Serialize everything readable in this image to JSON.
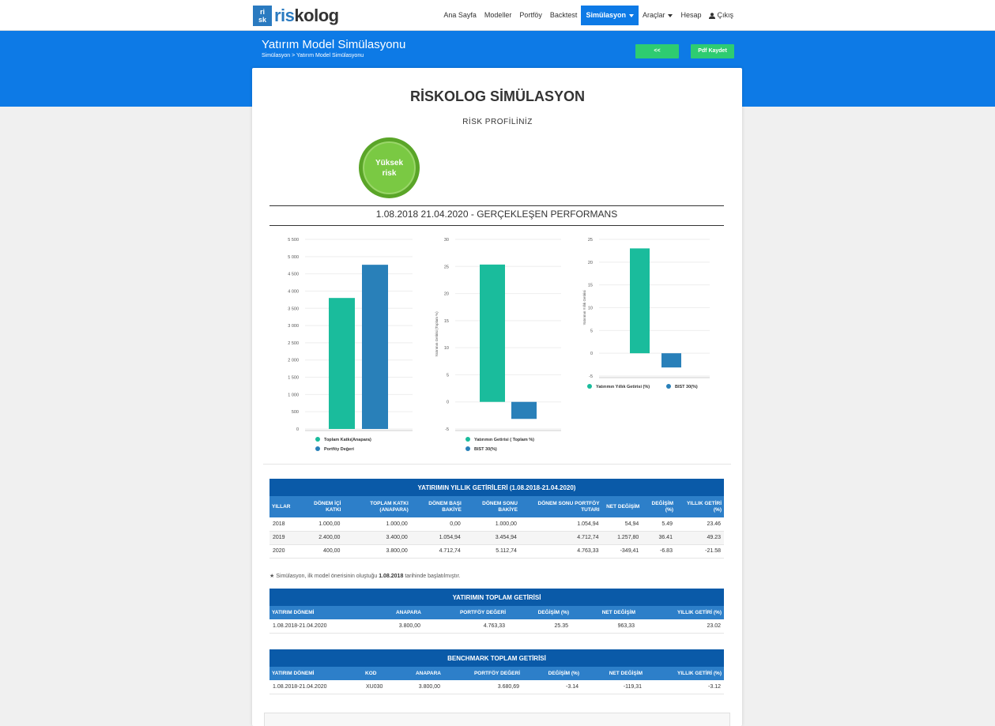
{
  "logo": {
    "mark_top": "ri",
    "mark_bottom": "sk",
    "text_a": "ris",
    "text_b": "kolog"
  },
  "nav": {
    "items": [
      {
        "label": "Ana Sayfa",
        "dropdown": false
      },
      {
        "label": "Modeller",
        "dropdown": false
      },
      {
        "label": "Portföy",
        "dropdown": false
      },
      {
        "label": "Backtest",
        "dropdown": false
      },
      {
        "label": "Simülasyon",
        "dropdown": true,
        "active": true
      },
      {
        "label": "Araçlar",
        "dropdown": true
      },
      {
        "label": "Hesap",
        "dropdown": false
      }
    ],
    "logout_label": "Çıkış"
  },
  "header": {
    "title": "Yatırım Model Simülasyonu",
    "breadcrumb": "Simülasyon > Yatırım Model Simülasyonu",
    "back_label": "<<",
    "pdf_label": "Pdf Kaydet"
  },
  "report": {
    "title": "RİSKOLOG SİMÜLASYON",
    "risk_profile_label": "RİSK PROFİLİNİZ",
    "risk_badge_line1": "Yüksek",
    "risk_badge_line2": "risk",
    "performance_title": "1.08.2018 21.04.2020 - GERÇEKLEŞEN PERFORMANS",
    "note_text_before": "Simülasyon, ilk model önerisinin oluştuğu",
    "note_date": "1.08.2018",
    "note_text_after": "tarihinde başlatılmıştır."
  },
  "colors": {
    "brand_blue": "#0d7ae6",
    "green": "#2ecc71",
    "teal": "#1abc9c",
    "bar_blue": "#2980b9",
    "risk_green": "#7ac943"
  },
  "chart_data": [
    {
      "type": "bar",
      "categories": [
        "Toplam Katkı(Anapara)",
        "Portföy Değeri"
      ],
      "values": [
        3800,
        4763.33
      ],
      "ylim": [
        0,
        5500
      ],
      "yticks": [
        0,
        500,
        1000,
        1500,
        2000,
        2500,
        3000,
        3500,
        4000,
        4500,
        5000,
        5500
      ],
      "ytick_labels": [
        "0",
        "500",
        "1 000",
        "1 500",
        "2 000",
        "2 500",
        "3 000",
        "3 500",
        "4 000",
        "4 500",
        "5 000",
        "5 500"
      ],
      "ylabel": "",
      "legend": [
        "Toplam Katkı(Anapara)",
        "Portföy Değeri"
      ],
      "legend_position": "bottom"
    },
    {
      "type": "bar",
      "categories": [
        "Yatırımın Getirisi ( Toplam %)",
        "BIST 30(%)"
      ],
      "values": [
        25.35,
        -3.14
      ],
      "ylim": [
        -5,
        30
      ],
      "yticks": [
        -5,
        0,
        5,
        10,
        15,
        20,
        25,
        30
      ],
      "ytick_labels": [
        "-5",
        "0",
        "5",
        "10",
        "15",
        "20",
        "25",
        "30"
      ],
      "ylabel": "Yatırımın Getirisi (Toplam %)",
      "legend": [
        "Yatırımın Getirisi ( Toplam %)",
        "BIST 30(%)"
      ],
      "legend_position": "bottom"
    },
    {
      "type": "bar",
      "categories": [
        "Yatırımın Yıllık Getirisi (%)",
        "BIST 30(%)"
      ],
      "values": [
        23.02,
        -3.12
      ],
      "ylim": [
        -5,
        25
      ],
      "yticks": [
        -5,
        0,
        5,
        10,
        15,
        20,
        25
      ],
      "ytick_labels": [
        "-5",
        "0",
        "5",
        "10",
        "15",
        "20",
        "25"
      ],
      "ylabel": "Yatırımın Yıllık Getirisi",
      "legend": [
        "Yatırımın Yıllık Getirisi (%)",
        "BIST 30(%)"
      ],
      "legend_position": "bottom"
    }
  ],
  "yearly_table": {
    "caption": "YATIRIMIN YILLIK GETİRİLERİ (1.08.2018-21.04.2020)",
    "headers": [
      "YILLAR",
      "DÖNEM İÇİ KATKI",
      "TOPLAM KATKI (ANAPARA)",
      "DÖNEM BAŞI BAKİYE",
      "DÖNEM SONU BAKİYE",
      "DÖNEM SONU PORTFÖY TUTARI",
      "NET DEĞİŞİM",
      "DEĞİŞİM (%)",
      "YILLIK GETİRİ (%)"
    ],
    "rows": [
      [
        "2018",
        "1.000,00",
        "1.000,00",
        "0,00",
        "1.000,00",
        "1.054,94",
        "54,94",
        "5.49",
        "23.46"
      ],
      [
        "2019",
        "2.400,00",
        "3.400,00",
        "1.054,94",
        "3.454,94",
        "4.712,74",
        "1.257,80",
        "36.41",
        "49.23"
      ],
      [
        "2020",
        "400,00",
        "3.800,00",
        "4.712,74",
        "5.112,74",
        "4.763,33",
        "-349,41",
        "-6.83",
        "-21.58"
      ]
    ]
  },
  "total_table": {
    "caption": "YATIRIMIN TOPLAM GETİRİSİ",
    "headers": [
      "YATIRIM DÖNEMİ",
      "ANAPARA",
      "PORTFÖY DEĞERİ",
      "DEĞİŞİM (%)",
      "NET DEĞİŞİM",
      "YILLIK GETİRİ (%)"
    ],
    "rows": [
      [
        "1.08.2018-21.04.2020",
        "3.800,00",
        "4.763,33",
        "25.35",
        "963,33",
        "23.02"
      ]
    ]
  },
  "benchmark_table": {
    "caption": "BENCHMARK TOPLAM GETİRİSİ",
    "headers": [
      "YATIRIM DÖNEMİ",
      "KOD",
      "ANAPARA",
      "PORTFÖY DEĞERİ",
      "DEĞİŞİM (%)",
      "NET DEĞİŞİM",
      "YILLIK GETİRİ (%)"
    ],
    "rows": [
      [
        "1.08.2018-21.04.2020",
        "XU030",
        "3.800,00",
        "3.680,69",
        "-3.14",
        "-119,31",
        "-3.12"
      ]
    ]
  }
}
